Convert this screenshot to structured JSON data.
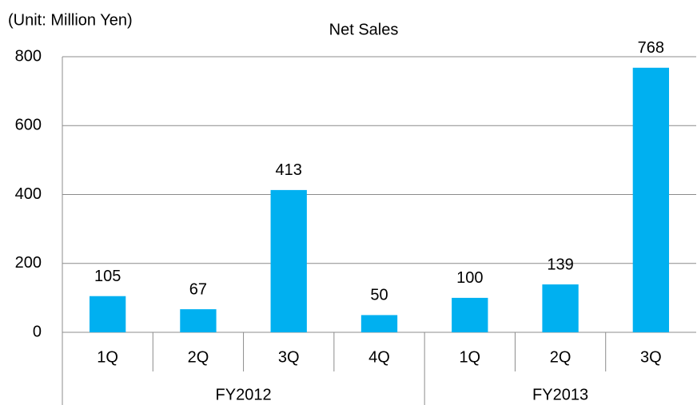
{
  "chart_data": {
    "type": "bar",
    "title": "Net Sales",
    "subtitle": "(Unit: Million Yen)",
    "groups": [
      {
        "name": "FY2012",
        "categories": [
          "1Q",
          "2Q",
          "3Q",
          "4Q"
        ]
      },
      {
        "name": "FY2013",
        "categories": [
          "1Q",
          "2Q",
          "3Q"
        ]
      }
    ],
    "values": [
      105,
      67,
      413,
      50,
      100,
      139,
      768
    ],
    "color": "#00b0f0",
    "ylim": [
      0,
      800
    ],
    "yticks": [
      0,
      200,
      400,
      600,
      800
    ],
    "grid": true
  }
}
